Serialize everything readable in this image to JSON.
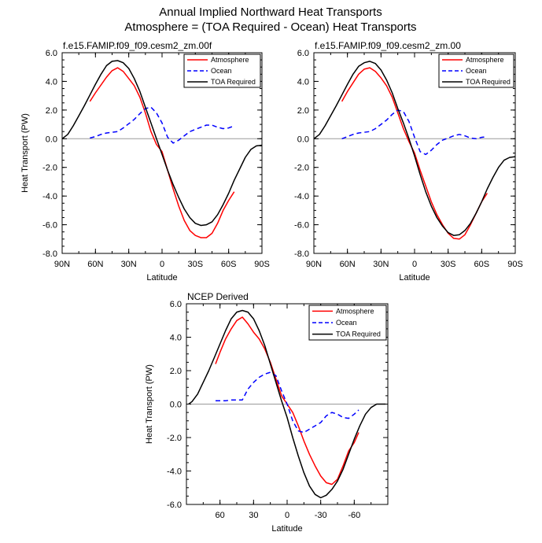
{
  "figure": {
    "title_line1": "Annual Implied Northward Heat Transports",
    "title_line2": "Atmosphere = (TOA Required - Ocean) Heat Transports"
  },
  "chart_data": [
    {
      "type": "line",
      "title": "f.e15.FAMIP.f09_f09.cesm2_zm.00f",
      "xlabel": "Latitude",
      "ylabel": "Heat Transport (PW)",
      "xlim": [
        90,
        -90
      ],
      "ylim": [
        -8,
        6
      ],
      "xticks": [
        90,
        60,
        30,
        0,
        -30,
        -60,
        -90
      ],
      "xtick_labels": [
        "90N",
        "60N",
        "30N",
        "0",
        "30S",
        "60S",
        "90S"
      ],
      "yticks": [
        -8,
        -6,
        -4,
        -2,
        0,
        2,
        4,
        6
      ],
      "ytick_labels": [
        "-8.0",
        "-6.0",
        "-4.0",
        "-2.0",
        "0.0",
        "2.0",
        "4.0",
        "6.0"
      ],
      "zero_line": true,
      "legend": "top-right",
      "series": [
        {
          "name": "Atmosphere",
          "color": "#ff0000",
          "dash": "solid",
          "x": [
            65,
            60,
            50,
            45,
            40,
            35,
            30,
            25,
            20,
            15,
            10,
            5,
            0,
            -5,
            -10,
            -15,
            -20,
            -25,
            -30,
            -35,
            -40,
            -45,
            -50,
            -55,
            -60,
            -65
          ],
          "y": [
            2.6,
            3.2,
            4.3,
            4.75,
            4.95,
            4.7,
            4.2,
            3.7,
            2.9,
            1.8,
            0.5,
            -0.4,
            -0.9,
            -2.2,
            -3.5,
            -4.7,
            -5.7,
            -6.4,
            -6.75,
            -6.9,
            -6.9,
            -6.6,
            -5.9,
            -5.0,
            -4.3,
            -3.7
          ]
        },
        {
          "name": "Ocean",
          "color": "#0000ff",
          "dash": "dashed",
          "x": [
            65,
            60,
            55,
            50,
            45,
            40,
            35,
            30,
            25,
            20,
            15,
            10,
            5,
            0,
            -5,
            -10,
            -15,
            -20,
            -25,
            -30,
            -35,
            -40,
            -45,
            -50,
            -55,
            -60,
            -65
          ],
          "y": [
            0.05,
            0.15,
            0.3,
            0.4,
            0.45,
            0.5,
            0.75,
            1.05,
            1.35,
            1.75,
            2.1,
            2.2,
            1.8,
            1.1,
            0.1,
            -0.3,
            -0.1,
            0.2,
            0.5,
            0.65,
            0.8,
            0.95,
            0.95,
            0.8,
            0.7,
            0.75,
            0.9
          ]
        },
        {
          "name": "TOA Required",
          "color": "#000000",
          "dash": "solid",
          "x": [
            90,
            85,
            80,
            75,
            70,
            65,
            60,
            55,
            50,
            45,
            40,
            35,
            30,
            25,
            20,
            15,
            10,
            5,
            0,
            -5,
            -10,
            -15,
            -20,
            -25,
            -30,
            -35,
            -40,
            -45,
            -50,
            -55,
            -60,
            -65,
            -70,
            -75,
            -80,
            -85,
            -90
          ],
          "y": [
            0.0,
            0.3,
            0.9,
            1.6,
            2.3,
            3.05,
            3.8,
            4.5,
            5.1,
            5.4,
            5.45,
            5.3,
            4.9,
            4.2,
            3.3,
            2.2,
            1.1,
            0.0,
            -1.1,
            -2.2,
            -3.2,
            -4.1,
            -4.9,
            -5.5,
            -5.9,
            -6.05,
            -6.0,
            -5.8,
            -5.3,
            -4.6,
            -3.8,
            -2.9,
            -2.1,
            -1.3,
            -0.75,
            -0.5,
            -0.45
          ]
        }
      ]
    },
    {
      "type": "line",
      "title": "f.e15.FAMIP.f09_f09.cesm2_zm.00",
      "xlabel": "Latitude",
      "ylabel": "",
      "xlim": [
        90,
        -90
      ],
      "ylim": [
        -8,
        6
      ],
      "xticks": [
        90,
        60,
        30,
        0,
        -30,
        -60,
        -90
      ],
      "xtick_labels": [
        "90N",
        "60N",
        "30N",
        "0",
        "30S",
        "60S",
        "90S"
      ],
      "yticks": [
        -8,
        -6,
        -4,
        -2,
        0,
        2,
        4,
        6
      ],
      "ytick_labels": [
        "-8.0",
        "-6.0",
        "-4.0",
        "-2.0",
        "0.0",
        "2.0",
        "4.0",
        "6.0"
      ],
      "zero_line": true,
      "legend": "top-right",
      "series": [
        {
          "name": "Atmosphere",
          "color": "#ff0000",
          "dash": "solid",
          "x": [
            65,
            60,
            50,
            45,
            40,
            35,
            30,
            25,
            20,
            15,
            10,
            5,
            0,
            -5,
            -10,
            -15,
            -20,
            -25,
            -30,
            -35,
            -40,
            -45,
            -50,
            -55,
            -60,
            -65
          ],
          "y": [
            2.6,
            3.3,
            4.5,
            4.85,
            4.95,
            4.7,
            4.25,
            3.7,
            2.9,
            1.8,
            0.7,
            -0.2,
            -1.0,
            -2.2,
            -3.3,
            -4.4,
            -5.3,
            -6.0,
            -6.6,
            -6.95,
            -7.0,
            -6.7,
            -6.0,
            -5.2,
            -4.4,
            -3.8
          ]
        },
        {
          "name": "Ocean",
          "color": "#0000ff",
          "dash": "dashed",
          "x": [
            65,
            60,
            55,
            50,
            45,
            40,
            35,
            30,
            25,
            20,
            15,
            10,
            5,
            0,
            -5,
            -10,
            -15,
            -20,
            -25,
            -30,
            -35,
            -40,
            -45,
            -50,
            -55,
            -60,
            -65
          ],
          "y": [
            0.0,
            0.15,
            0.3,
            0.4,
            0.45,
            0.5,
            0.7,
            1.0,
            1.3,
            1.7,
            2.0,
            1.9,
            1.2,
            0.1,
            -0.9,
            -1.1,
            -0.8,
            -0.4,
            -0.1,
            0.05,
            0.2,
            0.3,
            0.2,
            0.05,
            0.0,
            0.1,
            0.15
          ]
        },
        {
          "name": "TOA Required",
          "color": "#000000",
          "dash": "solid",
          "x": [
            90,
            85,
            80,
            75,
            70,
            65,
            60,
            55,
            50,
            45,
            40,
            35,
            30,
            25,
            20,
            15,
            10,
            5,
            0,
            -5,
            -10,
            -15,
            -20,
            -25,
            -30,
            -35,
            -40,
            -45,
            -50,
            -55,
            -60,
            -65,
            -70,
            -75,
            -80,
            -85,
            -90
          ],
          "y": [
            0.0,
            0.3,
            0.9,
            1.6,
            2.3,
            3.05,
            3.8,
            4.5,
            5.05,
            5.3,
            5.4,
            5.25,
            4.8,
            4.1,
            3.2,
            2.1,
            1.1,
            0.0,
            -1.2,
            -2.5,
            -3.7,
            -4.7,
            -5.5,
            -6.1,
            -6.55,
            -6.75,
            -6.7,
            -6.4,
            -5.9,
            -5.2,
            -4.4,
            -3.5,
            -2.7,
            -2.0,
            -1.5,
            -1.3,
            -1.25
          ]
        }
      ]
    },
    {
      "type": "line",
      "title": "NCEP Derived",
      "xlabel": "Latitude",
      "ylabel": "Heat Transport (PW)",
      "xlim": [
        90,
        -90
      ],
      "ylim": [
        -6,
        6
      ],
      "xticks": [
        60,
        30,
        0,
        -30,
        -60
      ],
      "xtick_labels": [
        "60",
        "30",
        "0",
        "-30",
        "-60"
      ],
      "yticks": [
        -6,
        -4,
        -2,
        0,
        2,
        4,
        6
      ],
      "ytick_labels": [
        "-6.0",
        "-4.0",
        "-2.0",
        "0.0",
        "2.0",
        "4.0",
        "6.0"
      ],
      "zero_line": true,
      "legend": "top-right",
      "series": [
        {
          "name": "Atmosphere",
          "color": "#ff0000",
          "dash": "solid",
          "x": [
            64,
            60,
            55,
            50,
            45,
            40,
            35,
            30,
            25,
            20,
            15,
            10,
            5,
            0,
            -5,
            -10,
            -15,
            -20,
            -25,
            -30,
            -35,
            -40,
            -45,
            -50,
            -55,
            -60,
            -64
          ],
          "y": [
            2.4,
            3.1,
            3.9,
            4.5,
            5.0,
            5.2,
            4.8,
            4.3,
            3.9,
            3.3,
            2.5,
            1.5,
            0.5,
            0.0,
            -0.5,
            -1.3,
            -2.2,
            -3.0,
            -3.7,
            -4.3,
            -4.7,
            -4.8,
            -4.5,
            -3.7,
            -2.8,
            -2.3,
            -1.7
          ]
        },
        {
          "name": "Ocean",
          "color": "#0000ff",
          "dash": "dashed",
          "x": [
            64,
            55,
            50,
            45,
            40,
            35,
            30,
            25,
            20,
            15,
            10,
            5,
            0,
            -5,
            -10,
            -15,
            -20,
            -25,
            -30,
            -35,
            -40,
            -45,
            -50,
            -55,
            -60,
            -64
          ],
          "y": [
            0.2,
            0.2,
            0.25,
            0.25,
            0.25,
            0.9,
            1.3,
            1.6,
            1.8,
            1.9,
            1.7,
            0.8,
            0.0,
            -1.0,
            -1.6,
            -1.7,
            -1.5,
            -1.3,
            -1.1,
            -0.7,
            -0.5,
            -0.6,
            -0.8,
            -0.85,
            -0.6,
            -0.35
          ]
        },
        {
          "name": "TOA Required",
          "color": "#000000",
          "dash": "solid",
          "x": [
            88,
            85,
            80,
            75,
            70,
            65,
            60,
            55,
            50,
            45,
            40,
            35,
            30,
            25,
            20,
            15,
            10,
            5,
            0,
            -5,
            -10,
            -15,
            -20,
            -25,
            -30,
            -35,
            -40,
            -45,
            -50,
            -55,
            -60,
            -65,
            -70,
            -75,
            -80,
            -85,
            -88
          ],
          "y": [
            0.0,
            0.15,
            0.6,
            1.3,
            2.0,
            2.8,
            3.6,
            4.4,
            5.1,
            5.5,
            5.6,
            5.5,
            5.1,
            4.4,
            3.5,
            2.4,
            1.3,
            0.2,
            -0.8,
            -2.0,
            -3.1,
            -4.1,
            -4.9,
            -5.4,
            -5.6,
            -5.45,
            -5.1,
            -4.6,
            -3.9,
            -3.0,
            -2.1,
            -1.3,
            -0.6,
            -0.2,
            0.0,
            0.0,
            0.0
          ]
        }
      ]
    }
  ]
}
